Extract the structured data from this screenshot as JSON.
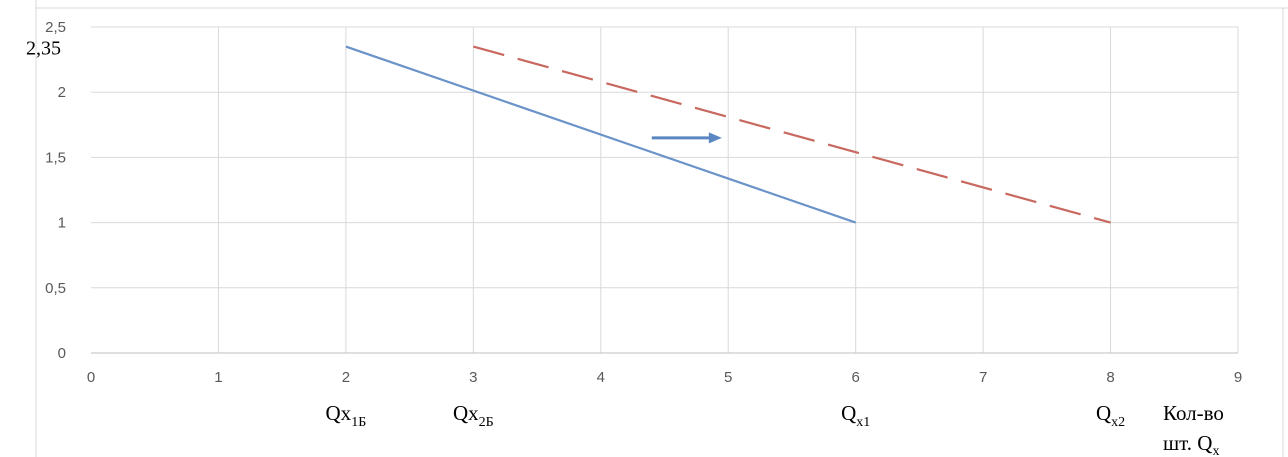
{
  "chart_data": {
    "type": "line",
    "xlim": [
      0,
      9
    ],
    "ylim": [
      0,
      2.5
    ],
    "grid": true,
    "x_ticks": [
      "0",
      "1",
      "2",
      "3",
      "4",
      "5",
      "6",
      "7",
      "8",
      "9"
    ],
    "y_ticks": [
      "0",
      "0,5",
      "1",
      "1,5",
      "2",
      "2,5"
    ],
    "y_extra_label": "2,35",
    "series": [
      {
        "points": [
          [
            2,
            2.35
          ],
          [
            6,
            1
          ]
        ],
        "color": "#6a93c9",
        "dash": "solid"
      },
      {
        "points": [
          [
            3,
            2.35
          ],
          [
            8,
            1
          ]
        ],
        "color": "#c8685e",
        "dash": "dashed"
      }
    ],
    "arrow": {
      "from": [
        4.4,
        1.65
      ],
      "to": [
        4.95,
        1.65
      ],
      "color": "#5a87c2"
    },
    "bottom_labels": [
      {
        "main": "Qx",
        "sub": "1Б",
        "x": 2
      },
      {
        "main": "Qx",
        "sub": "2Б",
        "x": 3
      },
      {
        "main": "Q",
        "sub": "x1",
        "x": 6
      },
      {
        "main": "Q",
        "sub": "x2",
        "x": 8
      }
    ],
    "axis_title_line1": "Кол-во",
    "axis_title_line2_main": "шт. Q",
    "axis_title_line2_sub": "x"
  }
}
